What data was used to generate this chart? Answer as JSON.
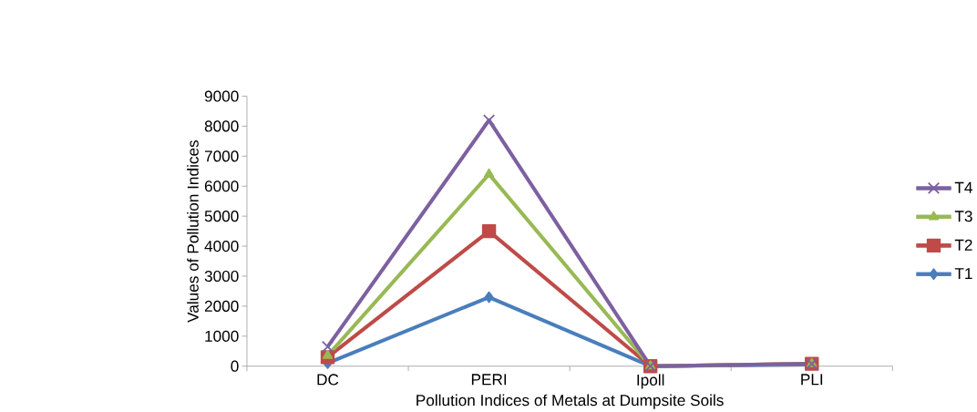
{
  "chart_data": {
    "type": "line",
    "xlabel": "Pollution Indices of Metals at Dumpsite Soils",
    "ylabel": "Values of Pollution Indices",
    "categories": [
      "DC",
      "PERI",
      "Ipoll",
      "PLI"
    ],
    "series": [
      {
        "name": "T1",
        "color": "#4a7ebb",
        "marker": "diamond",
        "values": [
          100,
          2300,
          0,
          50
        ]
      },
      {
        "name": "T2",
        "color": "#be4b48",
        "marker": "square",
        "values": [
          300,
          4500,
          0,
          80
        ]
      },
      {
        "name": "T3",
        "color": "#98b954",
        "marker": "triangle",
        "values": [
          350,
          6400,
          0,
          80
        ]
      },
      {
        "name": "T4",
        "color": "#7d60a0",
        "marker": "cross",
        "values": [
          650,
          8200,
          0,
          80
        ]
      }
    ],
    "ylim": [
      0,
      9000
    ],
    "yticks": [
      0,
      1000,
      2000,
      3000,
      4000,
      5000,
      6000,
      7000,
      8000,
      9000
    ],
    "legend": "right",
    "grid": false
  }
}
